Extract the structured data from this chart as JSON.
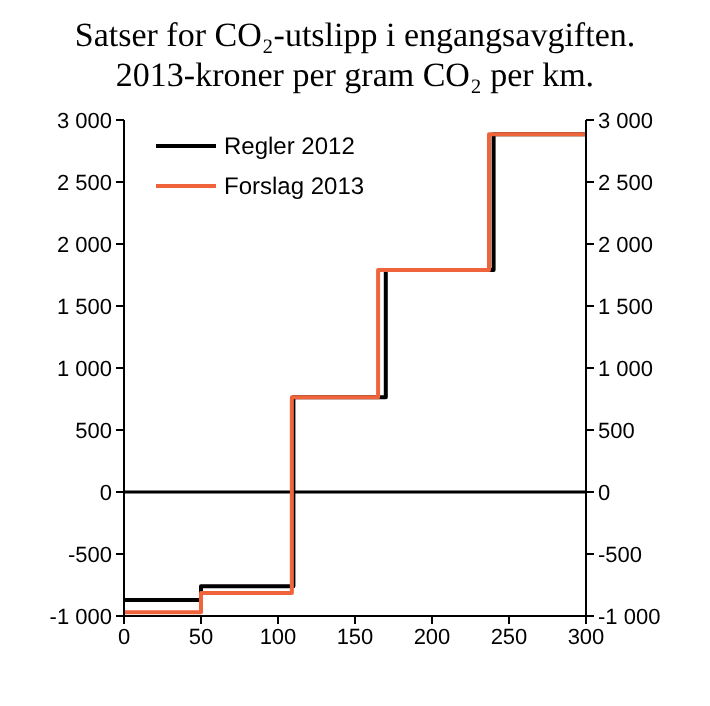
{
  "chart_data": {
    "type": "step",
    "title": "Satser for CO₂-utslipp i engangsavgiften.",
    "subtitle": "2013-kroner per gram CO₂ per km.",
    "series": [
      {
        "name": "Regler 2012",
        "color": "#000000",
        "x": [
          0,
          50,
          110,
          170,
          240,
          300
        ],
        "values": [
          -870,
          -760,
          765,
          1790,
          2885,
          2885
        ]
      },
      {
        "name": "Forslag 2013",
        "color": "#f0643c",
        "x": [
          0,
          50,
          109,
          165,
          237,
          300
        ],
        "values": [
          -970,
          -815,
          765,
          1790,
          2885,
          2885
        ]
      }
    ],
    "xlim": [
      0,
      300
    ],
    "xticks": [
      0,
      50,
      100,
      150,
      200,
      250,
      300
    ],
    "ylim": [
      -1000,
      3000
    ],
    "yticks": [
      {
        "value": -1000,
        "label": "-1 000"
      },
      -500,
      0,
      500,
      {
        "value": 1000,
        "label": "1 000"
      },
      {
        "value": 1500,
        "label": "1 500"
      },
      {
        "value": 2000,
        "label": "2 000"
      },
      {
        "value": 2500,
        "label": "2 500"
      },
      {
        "value": 3000,
        "label": "3 000"
      }
    ],
    "y2lim": [
      -1000,
      3000
    ],
    "y2ticks": [
      {
        "value": -1000,
        "label": "-1 000"
      },
      -500,
      0,
      500,
      {
        "value": 1000,
        "label": "1 000"
      },
      {
        "value": 1500,
        "label": "1 500"
      },
      {
        "value": 2000,
        "label": "2 000"
      },
      {
        "value": 2500,
        "label": "2 500"
      },
      {
        "value": 3000,
        "label": "3 000"
      }
    ],
    "ref_lines": [
      {
        "axis": "y",
        "value": 0,
        "color": "#000000"
      }
    ],
    "legend": "top left",
    "grid": false
  }
}
